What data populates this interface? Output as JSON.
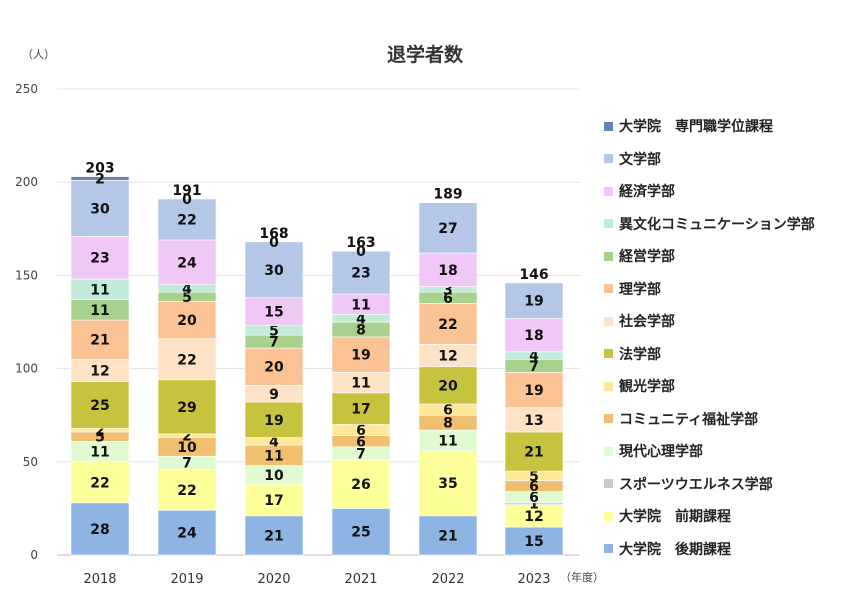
{
  "chart_data": {
    "type": "bar",
    "stacked": true,
    "title": "退学者数",
    "ylabel": "（人）",
    "xunit": "（年度）",
    "ylim": [
      0,
      250
    ],
    "yticks": [
      0,
      50,
      100,
      150,
      200,
      250
    ],
    "categories": [
      "2018",
      "2019",
      "2020",
      "2021",
      "2022",
      "2023"
    ],
    "totals": [
      203,
      191,
      168,
      163,
      189,
      146
    ],
    "series": [
      {
        "name": "大学院　後期課程",
        "color": "#8db4e2",
        "values": [
          28,
          24,
          21,
          25,
          21,
          15
        ],
        "labels": [
          "28",
          "24",
          "21",
          "25",
          "21",
          "15"
        ]
      },
      {
        "name": "大学院　前期課程",
        "color": "#ffff99",
        "values": [
          22,
          22,
          17,
          26,
          35,
          12
        ],
        "labels": [
          "22",
          "22",
          "17",
          "26",
          "35",
          "12"
        ]
      },
      {
        "name": "スポーツウエルネス学部",
        "color": "#c9c9c9",
        "values": [
          0,
          0,
          0,
          0,
          0,
          1
        ],
        "labels": [
          "",
          "",
          "",
          "",
          "",
          "1"
        ]
      },
      {
        "name": "現代心理学部",
        "color": "#e0fbd0",
        "values": [
          11,
          7,
          10,
          7,
          11,
          6
        ],
        "labels": [
          "11",
          "7",
          "10",
          "7",
          "11",
          "6"
        ]
      },
      {
        "name": "コミュニティ福祉学部",
        "color": "#f0c070",
        "values": [
          5,
          10,
          11,
          6,
          8,
          6
        ],
        "labels": [
          "5",
          "10",
          "11",
          "6",
          "8",
          "6"
        ]
      },
      {
        "name": "観光学部",
        "color": "#ffe89a",
        "values": [
          2,
          2,
          4,
          6,
          6,
          5
        ],
        "labels": [
          "2",
          "2",
          "4",
          "6",
          "6",
          "5"
        ]
      },
      {
        "name": "法学部",
        "color": "#c6c43e",
        "values": [
          25,
          29,
          19,
          17,
          20,
          21
        ],
        "labels": [
          "25",
          "29",
          "19",
          "17",
          "20",
          "21"
        ]
      },
      {
        "name": "社会学部",
        "color": "#fde2c6",
        "values": [
          12,
          22,
          9,
          11,
          12,
          13
        ],
        "labels": [
          "12",
          "22",
          "9",
          "11",
          "12",
          "13"
        ]
      },
      {
        "name": "理学部",
        "color": "#fbc394",
        "values": [
          21,
          20,
          20,
          19,
          22,
          19
        ],
        "labels": [
          "21",
          "20",
          "20",
          "19",
          "22",
          "19"
        ]
      },
      {
        "name": "経営学部",
        "color": "#a9d18e",
        "values": [
          11,
          5,
          7,
          8,
          6,
          7
        ],
        "labels": [
          "11",
          "5",
          "7",
          "8",
          "6",
          "7"
        ]
      },
      {
        "name": "異文化コミュニケーション学部",
        "color": "#c1ecd9",
        "values": [
          11,
          4,
          5,
          4,
          3,
          4
        ],
        "labels": [
          "11",
          "4",
          "5",
          "4",
          "3",
          "4"
        ]
      },
      {
        "name": "経済学部",
        "color": "#f0c8f6",
        "values": [
          23,
          24,
          15,
          11,
          18,
          18
        ],
        "labels": [
          "23",
          "24",
          "15",
          "11",
          "18",
          "18"
        ]
      },
      {
        "name": "文学部",
        "color": "#b4c7e7",
        "values": [
          30,
          22,
          30,
          23,
          27,
          19
        ],
        "labels": [
          "30",
          "22",
          "30",
          "23",
          "27",
          "19"
        ]
      },
      {
        "name": "大学院　専門職学位課程",
        "color": "#6383b5",
        "values": [
          2,
          0,
          0,
          0,
          0,
          0
        ],
        "labels": [
          "2",
          "0",
          "0",
          "0",
          "",
          ""
        ]
      }
    ]
  }
}
